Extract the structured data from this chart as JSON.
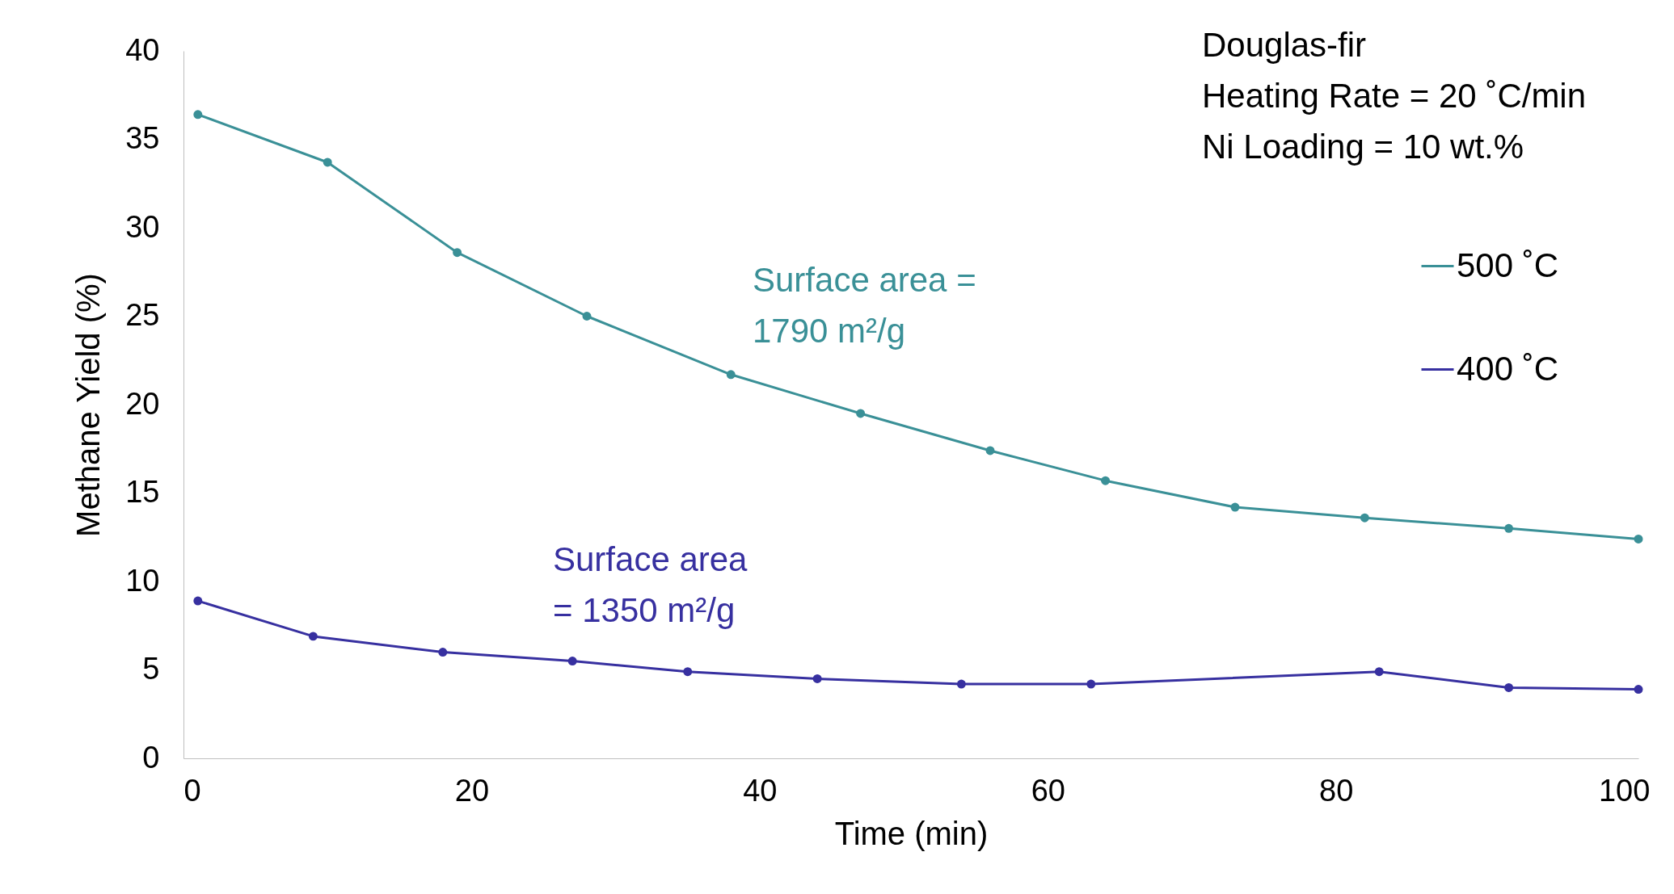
{
  "chart_data": {
    "type": "line",
    "xlabel": "Time (min)",
    "ylabel": "Methane Yield (%)",
    "xlim": [
      0,
      101
    ],
    "ylim": [
      0,
      40
    ],
    "xticks": [
      0,
      20,
      40,
      60,
      80,
      100
    ],
    "yticks": [
      0,
      5,
      10,
      15,
      20,
      25,
      30,
      35,
      40
    ],
    "grid": false,
    "legend": "top right",
    "marker": "circle",
    "line_style": "solid",
    "series": [
      {
        "name": "500 ˚C",
        "color": "#3a9097",
        "x": [
          1,
          10,
          19,
          28,
          38,
          47,
          56,
          64,
          73,
          82,
          92,
          101
        ],
        "values": [
          36.4,
          33.7,
          28.6,
          25.0,
          21.7,
          19.5,
          17.4,
          15.7,
          14.2,
          13.6,
          13.0,
          12.4
        ]
      },
      {
        "name": "400 ˚C",
        "color": "#3730a0",
        "x": [
          1,
          9,
          18,
          27,
          35,
          44,
          54,
          63,
          83,
          92,
          101
        ],
        "values": [
          8.9,
          6.9,
          6.0,
          5.5,
          4.9,
          4.5,
          4.2,
          4.2,
          4.9,
          4.0,
          3.9
        ]
      }
    ],
    "annotations": [
      "Surface area =\n1790 m²/g",
      "Surface area\n= 1350 m²/g",
      "Douglas-fir\nHeating Rate = 20 ˚C/min\nNi Loading = 10 wt.%"
    ]
  }
}
